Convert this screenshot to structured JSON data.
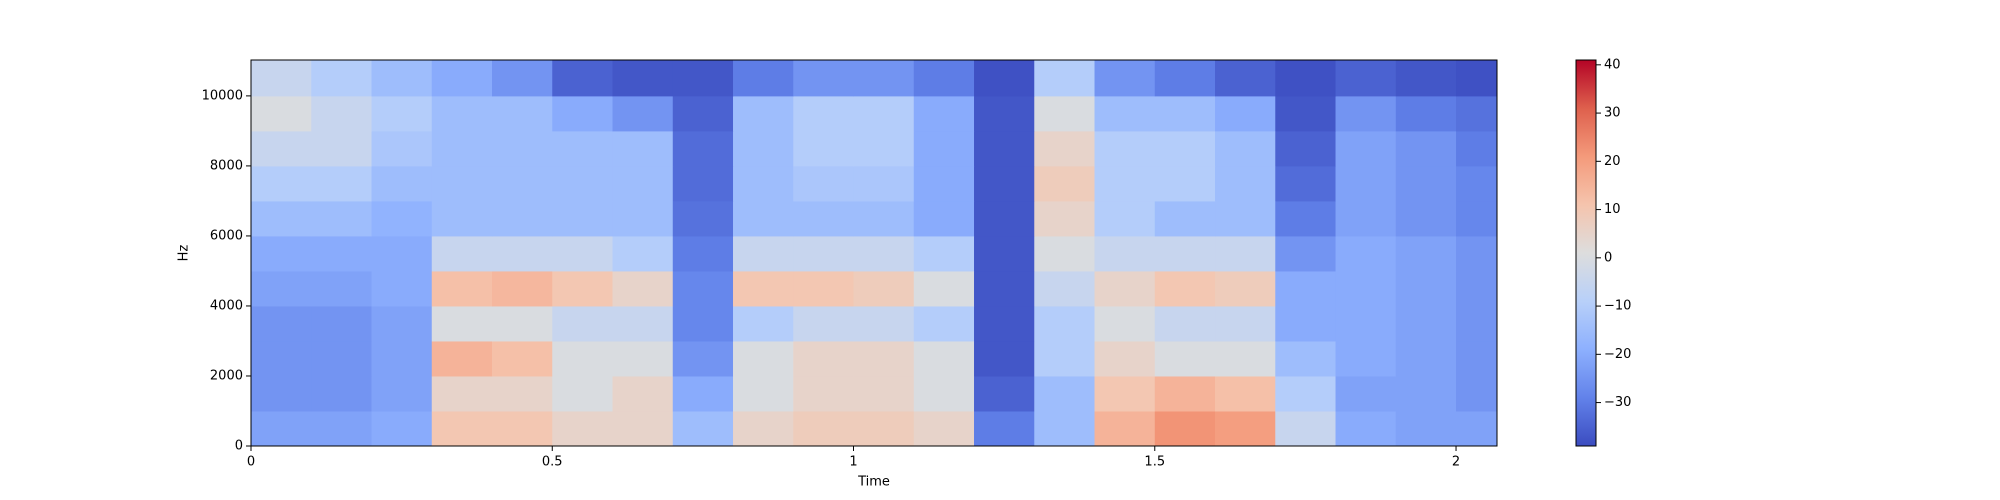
{
  "chart_data": {
    "type": "spectrogram",
    "xlabel": "Time",
    "ylabel": "Hz",
    "xbins": [
      0,
      0.1,
      0.2,
      0.3,
      0.4,
      0.5,
      0.6,
      0.7,
      0.8,
      0.9,
      1.0,
      1.1,
      1.2,
      1.3,
      1.4,
      1.5,
      1.6,
      1.7,
      1.8,
      1.9,
      2.0,
      2.068
    ],
    "ybins": [
      0,
      1000,
      2000,
      3000,
      4000,
      5000,
      6000,
      7000,
      8000,
      9000,
      10000,
      11025
    ],
    "values": [
      [
        -22,
        -22,
        -20,
        10,
        10,
        5,
        5,
        -15,
        5,
        8,
        8,
        5,
        -30,
        -15,
        15,
        22,
        20,
        -5,
        -20,
        -22,
        -22
      ],
      [
        -25,
        -25,
        -22,
        5,
        5,
        0,
        5,
        -20,
        0,
        5,
        5,
        0,
        -35,
        -15,
        10,
        15,
        12,
        -10,
        -22,
        -22,
        -25
      ],
      [
        -25,
        -25,
        -22,
        15,
        12,
        0,
        0,
        -25,
        0,
        5,
        5,
        0,
        -37,
        -10,
        5,
        0,
        0,
        -15,
        -20,
        -22,
        -25
      ],
      [
        -25,
        -25,
        -22,
        0,
        0,
        -5,
        -5,
        -28,
        -10,
        -5,
        -5,
        -10,
        -37,
        -10,
        0,
        -5,
        -5,
        -20,
        -20,
        -22,
        -25
      ],
      [
        -22,
        -22,
        -20,
        12,
        14,
        10,
        5,
        -28,
        10,
        10,
        8,
        0,
        -37,
        -5,
        5,
        10,
        8,
        -20,
        -20,
        -22,
        -25
      ],
      [
        -20,
        -20,
        -20,
        -5,
        -5,
        -5,
        -10,
        -30,
        -5,
        -5,
        -5,
        -10,
        -37,
        0,
        -5,
        -5,
        -5,
        -25,
        -20,
        -22,
        -25
      ],
      [
        -15,
        -15,
        -18,
        -15,
        -15,
        -15,
        -15,
        -32,
        -15,
        -15,
        -15,
        -20,
        -37,
        5,
        -10,
        -15,
        -15,
        -30,
        -22,
        -25,
        -28
      ],
      [
        -10,
        -10,
        -15,
        -15,
        -15,
        -15,
        -15,
        -33,
        -15,
        -12,
        -12,
        -20,
        -37,
        8,
        -10,
        -10,
        -15,
        -33,
        -22,
        -25,
        -28
      ],
      [
        -5,
        -5,
        -12,
        -15,
        -15,
        -15,
        -15,
        -33,
        -15,
        -10,
        -10,
        -20,
        -37,
        5,
        -10,
        -10,
        -15,
        -35,
        -22,
        -25,
        -30
      ],
      [
        0,
        -5,
        -10,
        -15,
        -15,
        -20,
        -25,
        -35,
        -15,
        -10,
        -10,
        -20,
        -37,
        0,
        -15,
        -15,
        -20,
        -37,
        -25,
        -30,
        -32
      ],
      [
        -5,
        -10,
        -15,
        -20,
        -25,
        -35,
        -37,
        -37,
        -30,
        -25,
        -25,
        -30,
        -38,
        -10,
        -25,
        -30,
        -35,
        -38,
        -35,
        -37,
        -38
      ]
    ],
    "xlim": [
      0,
      2.068
    ],
    "xticks": [
      0,
      0.5,
      1,
      1.5,
      2
    ],
    "ylim": [
      0,
      11025
    ],
    "yticks": [
      0,
      2000,
      4000,
      6000,
      8000,
      10000
    ],
    "colormap": "coolwarm",
    "clim": [
      -39,
      41
    ],
    "cticks": [
      {
        "value": -30,
        "label": "−30"
      },
      {
        "value": -20,
        "label": "−20"
      },
      {
        "value": -10,
        "label": "−10"
      },
      0,
      10,
      20,
      30,
      40
    ]
  }
}
